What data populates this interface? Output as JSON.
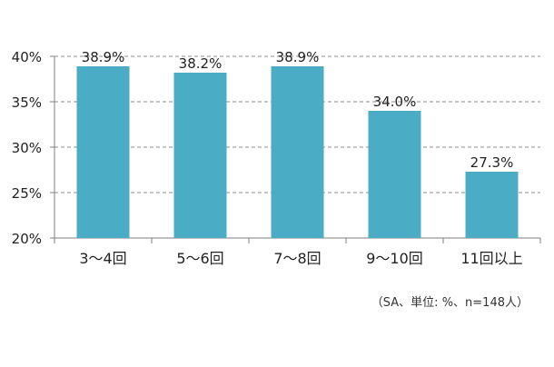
{
  "chart_data": {
    "type": "bar",
    "categories": [
      "3〜4回",
      "5〜6回",
      "7〜8回",
      "9〜10回",
      "11回以上"
    ],
    "values": [
      38.9,
      38.2,
      38.9,
      34.0,
      27.3
    ],
    "value_labels": [
      "38.9%",
      "38.2%",
      "38.9%",
      "34.0%",
      "27.3%"
    ],
    "title": "",
    "xlabel": "",
    "ylabel": "",
    "ylim": [
      20,
      40
    ],
    "y_ticks": [
      {
        "value": 20,
        "label": "20%"
      },
      {
        "value": 25,
        "label": "25%"
      },
      {
        "value": 30,
        "label": "30%"
      },
      {
        "value": 35,
        "label": "35%"
      },
      {
        "value": 40,
        "label": "40%"
      }
    ],
    "grid": true,
    "legend": "none",
    "bar_color": "#4BACC6"
  },
  "note": "（SA、単位: %、n=148人）"
}
